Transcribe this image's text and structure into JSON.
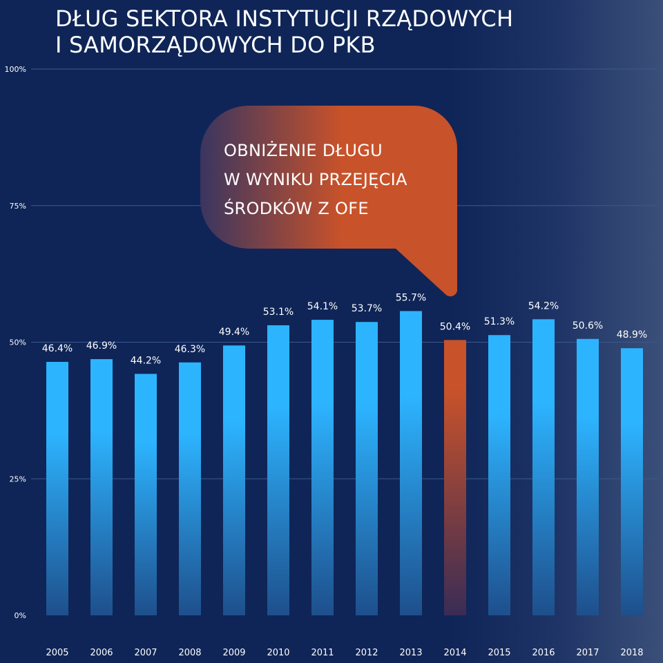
{
  "title": {
    "line1": "DŁUG SEKTORA INSTYTUCJI RZĄDOWYCH",
    "line2": "I SAMORZĄDOWYCH DO PKB"
  },
  "callout": {
    "line1": "OBNIŻENIE DŁUGU",
    "line2": "W WYNIKU PRZEJĘCIA",
    "line3": "ŚRODKÓW Z OFE"
  },
  "colors": {
    "background": "#0f2557",
    "bar": "#2db4ff",
    "bar_bottom": "#1e4f8c",
    "highlight": "#c8522a",
    "grid": "#3a5a8c"
  },
  "chart_data": {
    "type": "bar",
    "title": "DŁUG SEKTORA INSTYTUCJI RZĄDOWYCH I SAMORZĄDOWYCH DO PKB",
    "xlabel": "",
    "ylabel": "",
    "categories": [
      "2005",
      "2006",
      "2007",
      "2008",
      "2009",
      "2010",
      "2011",
      "2012",
      "2013",
      "2014",
      "2015",
      "2016",
      "2017",
      "2018"
    ],
    "values": [
      46.4,
      46.9,
      44.2,
      46.3,
      49.4,
      53.1,
      54.1,
      53.7,
      55.7,
      50.4,
      51.3,
      54.2,
      50.6,
      48.9
    ],
    "value_labels": [
      "46.4%",
      "46.9%",
      "44.2%",
      "46.3%",
      "49.4%",
      "53.1%",
      "54.1%",
      "53.7%",
      "55.7%",
      "50.4%",
      "51.3%",
      "54.2%",
      "50.6%",
      "48.9%"
    ],
    "highlight_category": "2014",
    "ylim": [
      0,
      100
    ],
    "yticks": [
      0,
      25,
      50,
      75,
      100
    ],
    "ytick_labels": [
      "0%",
      "25%",
      "50%",
      "75%",
      "100%"
    ],
    "grid": true
  }
}
